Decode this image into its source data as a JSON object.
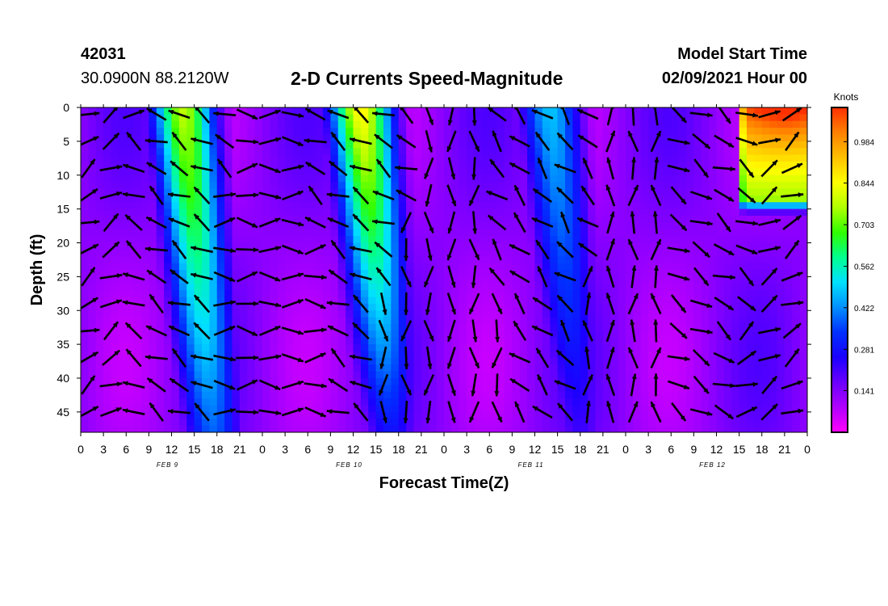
{
  "header": {
    "station_id": "42031",
    "station_location": "30.0900N 88.2120W",
    "chart_title": "2-D Currents Speed-Magnitude",
    "model_start_label": "Model Start Time",
    "model_start_time": "02/09/2021 Hour 00"
  },
  "chart_data": {
    "type": "heatmap",
    "title": "2-D Currents Speed-Magnitude",
    "xlabel": "Forecast Time(Z)",
    "ylabel": "Depth (ft)",
    "x_hours_range": [
      0,
      96
    ],
    "ylim": [
      0,
      48
    ],
    "y_inverted": true,
    "x_tick_labels": [
      "0",
      "3",
      "6",
      "9",
      "12",
      "15",
      "18",
      "21",
      "0",
      "3",
      "6",
      "9",
      "12",
      "15",
      "18",
      "21",
      "0",
      "3",
      "6",
      "9",
      "12",
      "15",
      "18",
      "21",
      "0",
      "3",
      "6",
      "9",
      "12",
      "15",
      "18",
      "21",
      "0"
    ],
    "y_ticks": [
      0,
      5,
      10,
      15,
      20,
      25,
      30,
      35,
      40,
      45
    ],
    "date_labels": [
      {
        "hour": 12,
        "label": "FEB 9"
      },
      {
        "hour": 36,
        "label": "FEB 10"
      },
      {
        "hour": 60,
        "label": "FEB 11"
      },
      {
        "hour": 84,
        "label": "FEB 12"
      }
    ],
    "colorbar": {
      "unit": "Knots",
      "range": [
        0,
        1.1
      ],
      "tick_labels": [
        "0.984",
        "0.844",
        "0.703",
        "0.562",
        "0.422",
        "0.281",
        "0.141"
      ],
      "tick_values": [
        0.984,
        0.844,
        0.703,
        0.562,
        0.422,
        0.281,
        0.141
      ],
      "colors": [
        "#ff00ff",
        "#b000ff",
        "#6a00ff",
        "#1a00ff",
        "#0030ff",
        "#0090ff",
        "#00e0ff",
        "#00ff90",
        "#30ff00",
        "#b0ff00",
        "#ffff00",
        "#ffc000",
        "#ff8000",
        "#ff3000"
      ]
    },
    "speed_features": [
      {
        "hour": 13.5,
        "surface_speed": 0.78,
        "bottom_speed": 0.38,
        "slope_hours": 4
      },
      {
        "hour": 37,
        "surface_speed": 0.86,
        "bottom_speed": 0.28,
        "slope_hours": 4
      },
      {
        "hour": 62,
        "surface_speed": 0.48,
        "bottom_speed": 0.22,
        "slope_hours": 4
      },
      {
        "hour": 88,
        "surface_speed": 1.02,
        "bottom_speed": 0.05,
        "slope_hours": 0
      }
    ],
    "arrow_directions": [
      {
        "hour": 0,
        "depth": 0,
        "bearing_deg": 60
      },
      {
        "hour": 12,
        "depth": 10,
        "bearing_deg": 300
      },
      {
        "hour": 24,
        "depth": 20,
        "bearing_deg": 90
      },
      {
        "hour": 36,
        "depth": 10,
        "bearing_deg": 300
      },
      {
        "hour": 48,
        "depth": 30,
        "bearing_deg": 180
      },
      {
        "hour": 60,
        "depth": 20,
        "bearing_deg": 315
      },
      {
        "hour": 72,
        "depth": 30,
        "bearing_deg": 0
      },
      {
        "hour": 84,
        "depth": 25,
        "bearing_deg": 120
      },
      {
        "hour": 92,
        "depth": 35,
        "bearing_deg": 60
      }
    ]
  }
}
